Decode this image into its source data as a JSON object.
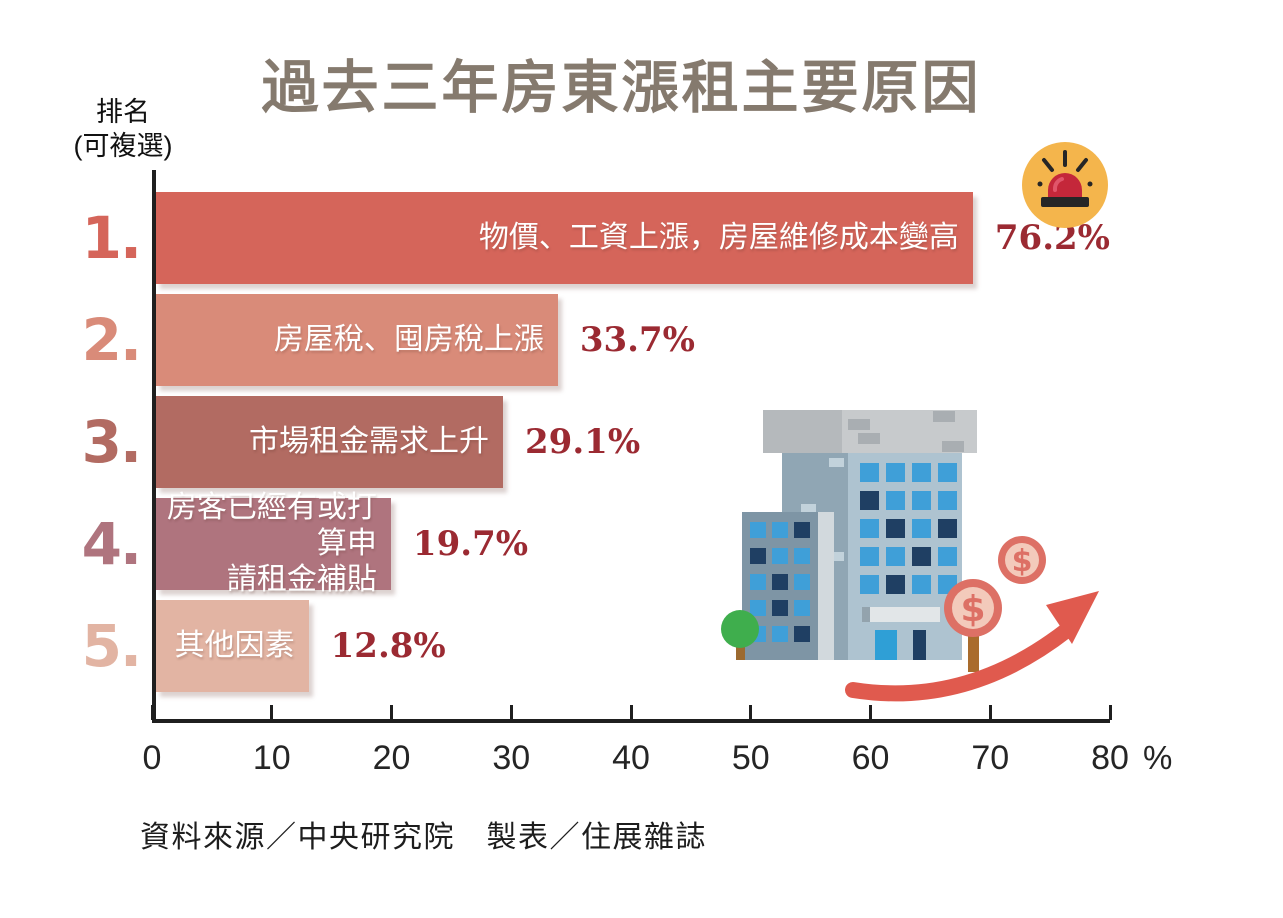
{
  "title": "過去三年房東漲租主要原因",
  "y_axis_caption": {
    "line1": "排名",
    "line2": "(可複選)"
  },
  "source_note": "資料來源／中央研究院　製表／住展雜誌",
  "colors": {
    "title": "#857a6e",
    "value_label": "#9b2a32",
    "axis": "#1f1f1f",
    "bar_rank1": "#d5655a",
    "bar_rank2": "#d98b79",
    "bar_rank3": "#b26b62",
    "bar_rank4": "#af747e",
    "bar_rank5": "#e2b4a3",
    "siren_body": "#c4273a",
    "siren_badge_bg": "#f4b54c",
    "arrow": "#e05a4e"
  },
  "icons": {
    "siren": "siren-icon",
    "building": "building-icon",
    "tree": "tree-icon",
    "coin": "dollar-coin-icon",
    "arrow": "growth-arrow-icon"
  },
  "chart_data": {
    "type": "bar",
    "orientation": "horizontal",
    "title": "過去三年房東漲租主要原因",
    "xlabel": "%",
    "xlim": [
      0,
      80
    ],
    "x_ticks": [
      0,
      10,
      20,
      30,
      40,
      50,
      60,
      70,
      80
    ],
    "grid": false,
    "legend": "none",
    "rows": [
      {
        "rank": "1.",
        "label": "物價、工資上漲，房屋維修成本變高",
        "value": 76.2,
        "value_label": "76.2%",
        "color": "#d5655a"
      },
      {
        "rank": "2.",
        "label": "房屋稅、囤房稅上漲",
        "value": 33.7,
        "value_label": "33.7%",
        "color": "#d98b79"
      },
      {
        "rank": "3.",
        "label": "市場租金需求上升",
        "value": 29.1,
        "value_label": "29.1%",
        "color": "#b26b62"
      },
      {
        "rank": "4.",
        "label": "房客已經有或打算申\n請租金補貼",
        "value": 19.7,
        "value_label": "19.7%",
        "color": "#af747e"
      },
      {
        "rank": "5.",
        "label": "其他因素",
        "value": 12.8,
        "value_label": "12.8%",
        "color": "#e2b4a3"
      }
    ]
  }
}
